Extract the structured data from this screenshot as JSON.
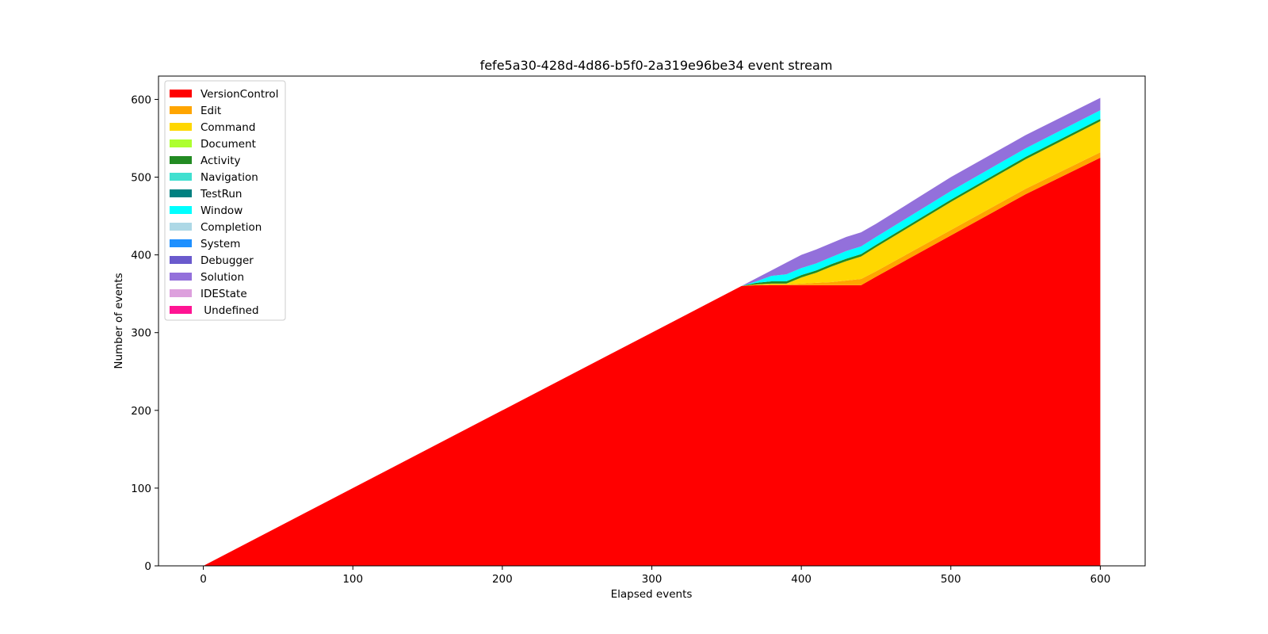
{
  "chart_data": {
    "type": "area",
    "title": "fefe5a30-428d-4d86-b5f0-2a319e96be34 event stream",
    "xlabel": "Elapsed events",
    "ylabel": "Number of events",
    "xlim": [
      -30,
      630
    ],
    "ylim": [
      0,
      630
    ],
    "xticks": [
      0,
      100,
      200,
      300,
      400,
      500,
      600
    ],
    "yticks": [
      0,
      100,
      200,
      300,
      400,
      500,
      600
    ],
    "grid": false,
    "legend_position": "upper-left",
    "x": [
      0,
      100,
      200,
      300,
      360,
      370,
      380,
      390,
      400,
      410,
      420,
      430,
      440,
      450,
      500,
      550,
      600
    ],
    "series": [
      {
        "name": "VersionControl",
        "color": "#ff0000",
        "values": [
          0,
          100,
          200,
          300,
          360,
          361,
          361,
          361,
          361,
          361,
          361,
          361,
          361,
          372,
          425,
          478,
          525
        ]
      },
      {
        "name": "Edit",
        "color": "#ffa500",
        "values": [
          0,
          0,
          0,
          0,
          0,
          0,
          1,
          1,
          2,
          3,
          4,
          6,
          8,
          7,
          7,
          7,
          7
        ]
      },
      {
        "name": "Command",
        "color": "#ffd700",
        "values": [
          0,
          0,
          0,
          0,
          0,
          1,
          1,
          1,
          8,
          13,
          20,
          25,
          29,
          31,
          36,
          38,
          40
        ]
      },
      {
        "name": "Document",
        "color": "#adff2f",
        "values": [
          0,
          0,
          0,
          0,
          0,
          0,
          0,
          0,
          0,
          0,
          0,
          0,
          0,
          0,
          0,
          0,
          0
        ]
      },
      {
        "name": "Activity",
        "color": "#228b22",
        "values": [
          0,
          0,
          0,
          0,
          0,
          2,
          3,
          3,
          3,
          3,
          3,
          3,
          3,
          3,
          3,
          3,
          3
        ]
      },
      {
        "name": "Navigation",
        "color": "#40e0d0",
        "values": [
          0,
          0,
          0,
          0,
          0,
          0,
          0,
          0,
          0,
          0,
          0,
          0,
          0,
          0,
          0,
          0,
          0
        ]
      },
      {
        "name": "TestRun",
        "color": "#008080",
        "values": [
          0,
          0,
          0,
          0,
          0,
          0,
          0,
          0,
          0,
          0,
          0,
          0,
          0,
          0,
          0,
          0,
          0
        ]
      },
      {
        "name": "Window",
        "color": "#00ffff",
        "values": [
          0,
          0,
          0,
          0,
          0,
          2,
          7,
          9,
          9,
          9,
          9,
          10,
          10,
          10,
          11,
          11,
          11
        ]
      },
      {
        "name": "Completion",
        "color": "#add8e6",
        "values": [
          0,
          0,
          0,
          0,
          0,
          0,
          0,
          0,
          0,
          0,
          0,
          0,
          0,
          0,
          0,
          0,
          0
        ]
      },
      {
        "name": "System",
        "color": "#1e90ff",
        "values": [
          0,
          0,
          0,
          0,
          0,
          0,
          0,
          0,
          0,
          0,
          0,
          0,
          0,
          0,
          0,
          0,
          0
        ]
      },
      {
        "name": "Debugger",
        "color": "#6a5acd",
        "values": [
          0,
          0,
          0,
          0,
          0,
          0,
          0,
          0,
          0,
          0,
          0,
          0,
          0,
          0,
          0,
          0,
          0
        ]
      },
      {
        "name": "Solution",
        "color": "#9370db",
        "values": [
          0,
          0,
          0,
          0,
          0,
          4,
          7,
          15,
          17,
          18,
          18,
          18,
          18,
          17,
          18,
          17,
          16
        ]
      },
      {
        "name": "IDEState",
        "color": "#dda0dd",
        "values": [
          0,
          0,
          0,
          0,
          0,
          0,
          0,
          0,
          0,
          0,
          0,
          0,
          0,
          0,
          0,
          0,
          0
        ]
      },
      {
        "name": " Undefined",
        "color": "#ff1493",
        "values": [
          0,
          0,
          0,
          0,
          0,
          0,
          0,
          0,
          0,
          0,
          0,
          0,
          0,
          0,
          0,
          0,
          0
        ]
      }
    ]
  }
}
